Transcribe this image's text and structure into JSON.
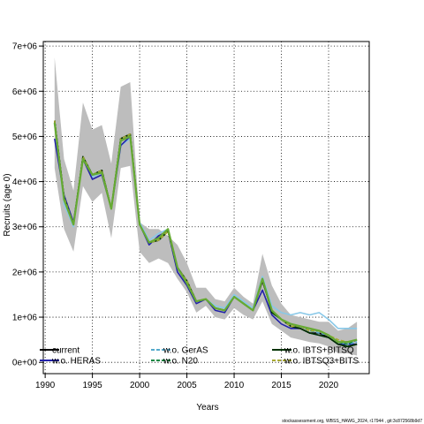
{
  "chart_data": {
    "type": "line",
    "xlabel": "Years",
    "ylabel": "Recruits (age 0)",
    "xlim": [
      1989.8,
      2024.3
    ],
    "ylim": [
      -250000,
      7100000
    ],
    "x_ticks": [
      1990,
      1995,
      2000,
      2005,
      2010,
      2015,
      2020
    ],
    "y_ticks": [
      0,
      1000000,
      2000000,
      3000000,
      4000000,
      5000000,
      6000000,
      7000000
    ],
    "y_tick_labels": [
      "0e+00",
      "1e+06",
      "2e+06",
      "3e+06",
      "4e+06",
      "5e+06",
      "6e+06",
      "7e+06"
    ],
    "grid": true,
    "credit": "stockassessment.org, WBSS_HAWG_2024, r17944 , git:3c872568b9d7",
    "x": [
      1991,
      1992,
      1993,
      1994,
      1995,
      1996,
      1997,
      1998,
      1999,
      2000,
      2001,
      2002,
      2003,
      2004,
      2005,
      2006,
      2007,
      2008,
      2009,
      2010,
      2011,
      2012,
      2013,
      2014,
      2015,
      2016,
      2017,
      2018,
      2019,
      2020,
      2021,
      2022,
      2023
    ],
    "confidence_band": {
      "upper": [
        6750000,
        4500000,
        3800000,
        5750000,
        5150000,
        5250000,
        4400000,
        6100000,
        6200000,
        3100000,
        2950000,
        2950000,
        2800000,
        2600000,
        2200000,
        1650000,
        1650000,
        1400000,
        1350000,
        1650000,
        1450000,
        1300000,
        2400000,
        1700000,
        1300000,
        1050000,
        1000000,
        950000,
        900000,
        900000,
        700000,
        750000,
        900000
      ],
      "lower": [
        4300000,
        2950000,
        2450000,
        3900000,
        3550000,
        3750000,
        2750000,
        4300000,
        4350000,
        2450000,
        2200000,
        2300000,
        2200000,
        1850000,
        1550000,
        1100000,
        1250000,
        1000000,
        950000,
        1200000,
        1050000,
        950000,
        1350000,
        850000,
        700000,
        550000,
        500000,
        450000,
        420000,
        350000,
        200000,
        200000,
        150000
      ]
    },
    "series": [
      {
        "name": "current",
        "color": "#000000",
        "dash": "solid",
        "values": [
          5350000,
          3650000,
          3050000,
          4550000,
          4150000,
          4250000,
          3400000,
          4950000,
          5050000,
          3050000,
          2650000,
          2700000,
          2900000,
          2100000,
          1800000,
          1350000,
          1400000,
          1200000,
          1150000,
          1450000,
          1300000,
          1150000,
          1800000,
          1150000,
          950000,
          800000,
          750000,
          650000,
          650000,
          550000,
          400000,
          350000,
          400000
        ]
      },
      {
        "name": "w.o. HERAS",
        "color": "#2222aa",
        "dash": "solid",
        "values": [
          4950000,
          3700000,
          3100000,
          4500000,
          4050000,
          4150000,
          3400000,
          4800000,
          5000000,
          3050000,
          2600000,
          2800000,
          2900000,
          2000000,
          1700000,
          1300000,
          1400000,
          1150000,
          1100000,
          1450000,
          1300000,
          1150000,
          1600000,
          1050000,
          850000,
          750000,
          750000,
          650000,
          600000,
          550000,
          400000,
          400000,
          400000
        ]
      },
      {
        "name": "w.o. GerAS",
        "color": "#55aacc",
        "dash": "dashed",
        "values": [
          5350000,
          3650000,
          3050000,
          4550000,
          4150000,
          4250000,
          3400000,
          4950000,
          5050000,
          3050000,
          2650000,
          2700000,
          2900000,
          2100000,
          1800000,
          1350000,
          1400000,
          1200000,
          1150000,
          1450000,
          1300000,
          1150000,
          1850000,
          1150000,
          950000,
          800000,
          800000,
          700000,
          650000,
          600000,
          450000,
          400000,
          450000
        ]
      },
      {
        "name": "w.o. N20",
        "color": "#118844",
        "dash": "dashed",
        "values": [
          5350000,
          3650000,
          3050000,
          4550000,
          4150000,
          4250000,
          3400000,
          4950000,
          5050000,
          3050000,
          2650000,
          2700000,
          2900000,
          2100000,
          1800000,
          1350000,
          1400000,
          1200000,
          1150000,
          1450000,
          1300000,
          1150000,
          1850000,
          1100000,
          950000,
          800000,
          800000,
          700000,
          700000,
          600000,
          450000,
          400000,
          500000
        ]
      },
      {
        "name": "w.o. IBTS+BITSQ",
        "color": "#003300",
        "dash": "solid",
        "values": [
          5350000,
          3650000,
          3050000,
          4550000,
          4150000,
          4250000,
          3400000,
          4950000,
          5050000,
          3050000,
          2650000,
          2700000,
          2900000,
          2100000,
          1800000,
          1350000,
          1400000,
          1200000,
          1150000,
          1450000,
          1300000,
          1150000,
          1850000,
          1100000,
          950000,
          800000,
          750000,
          650000,
          600000,
          550000,
          400000,
          350000,
          400000
        ]
      },
      {
        "name": "w.o. IBTSQ3+BITS",
        "color": "#aaaa33",
        "dash": "dashed",
        "values": [
          5350000,
          3650000,
          3050000,
          4550000,
          4150000,
          4250000,
          3400000,
          4950000,
          5050000,
          3050000,
          2650000,
          2700000,
          2900000,
          2100000,
          1800000,
          1350000,
          1400000,
          1200000,
          1150000,
          1450000,
          1300000,
          1150000,
          1850000,
          1150000,
          950000,
          800000,
          800000,
          700000,
          700000,
          600000,
          500000,
          450000,
          500000
        ]
      },
      {
        "name": "",
        "color": "#88c8e8",
        "dash": "solid",
        "values": [
          5300000,
          3500000,
          3000000,
          4550000,
          4100000,
          4200000,
          3400000,
          4800000,
          4950000,
          3100000,
          2700000,
          2850000,
          2950000,
          2100000,
          1750000,
          1350000,
          1400000,
          1250000,
          1200000,
          1500000,
          1350000,
          1200000,
          1900000,
          1250000,
          1100000,
          1050000,
          1100000,
          1050000,
          1100000,
          950000,
          750000,
          750000,
          750000
        ]
      },
      {
        "name": "",
        "color": "#66aa33",
        "dash": "solid",
        "values": [
          5300000,
          3600000,
          3050000,
          4500000,
          4150000,
          4200000,
          3400000,
          4900000,
          5000000,
          3050000,
          2650000,
          2750000,
          2950000,
          2100000,
          1750000,
          1350000,
          1400000,
          1200000,
          1150000,
          1450000,
          1300000,
          1150000,
          1850000,
          1150000,
          950000,
          850000,
          800000,
          750000,
          700000,
          600000,
          450000,
          450000,
          500000
        ]
      }
    ],
    "legend": {
      "placement": "bottom-inside"
    }
  }
}
